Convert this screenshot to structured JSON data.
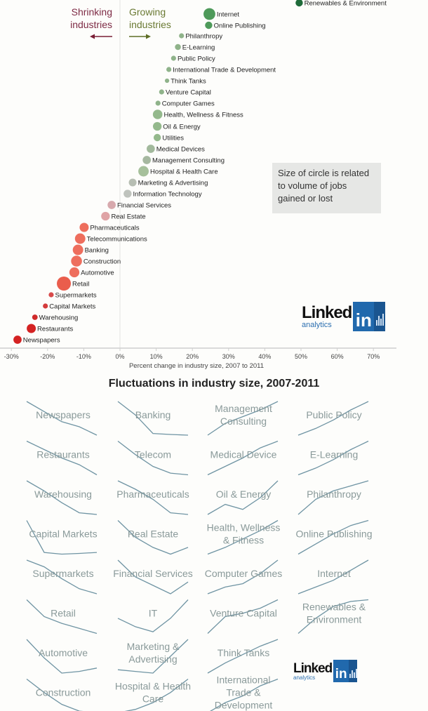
{
  "chart_data": [
    {
      "type": "scatter",
      "title": "",
      "xlabel": "Percent change in industry size, 2007 to 2011",
      "ylabel": "",
      "xlim": [
        -30,
        70
      ],
      "xticks": [
        "-30%",
        "-20%",
        "-10%",
        "0%",
        "10%",
        "20%",
        "30%",
        "40%",
        "50%",
        "60%",
        "70%"
      ],
      "xtick_values": [
        -30,
        -20,
        -10,
        0,
        10,
        20,
        30,
        40,
        50,
        60,
        70
      ],
      "grid": true,
      "annotations": {
        "shrinking": "Shrinking industries",
        "growing": "Growing industries",
        "size_note": "Size of circle is related to volume of jobs gained or lost"
      },
      "size_note_line1": "Size of circle is related",
      "size_note_line2": "to volume of jobs",
      "size_note_line3": "gained or lost",
      "series": [
        {
          "name": "Renewables & Environment",
          "value": 49.5,
          "size": 2,
          "color": "#1f6b3a"
        },
        {
          "name": "Internet",
          "value": 24.7,
          "size": 4,
          "color": "#4e9a5a"
        },
        {
          "name": "Online Publishing",
          "value": 24.5,
          "size": 2,
          "color": "#4e9a5a"
        },
        {
          "name": "Philanthropy",
          "value": 17.0,
          "size": 1,
          "color": "#8fb38a"
        },
        {
          "name": "E-Learning",
          "value": 16.0,
          "size": 1.4,
          "color": "#8fb38a"
        },
        {
          "name": "Public Policy",
          "value": 14.8,
          "size": 1,
          "color": "#8fb38a"
        },
        {
          "name": "International Trade & Development",
          "value": 13.5,
          "size": 1,
          "color": "#8fb38a"
        },
        {
          "name": "Think Tanks",
          "value": 13.0,
          "size": 0.7,
          "color": "#8fb38a"
        },
        {
          "name": "Venture Capital",
          "value": 11.5,
          "size": 1,
          "color": "#8fb38a"
        },
        {
          "name": "Computer Games",
          "value": 10.5,
          "size": 1,
          "color": "#8fb38a"
        },
        {
          "name": "Health, Wellness & Fitness",
          "value": 10.4,
          "size": 3,
          "color": "#94b98c"
        },
        {
          "name": "Oil & Energy",
          "value": 10.3,
          "size": 2.6,
          "color": "#94b98c"
        },
        {
          "name": "Utilities",
          "value": 10.3,
          "size": 2,
          "color": "#94b98c"
        },
        {
          "name": "Medical Devices",
          "value": 8.5,
          "size": 2.4,
          "color": "#a2b99c"
        },
        {
          "name": "Management Consulting",
          "value": 7.4,
          "size": 2.4,
          "color": "#a6b8a0"
        },
        {
          "name": "Hospital & Health Care",
          "value": 6.5,
          "size": 3.4,
          "color": "#a6c09b"
        },
        {
          "name": "Marketing & Advertising",
          "value": 3.5,
          "size": 2.2,
          "color": "#b7beb3"
        },
        {
          "name": "Information Technology",
          "value": 2.1,
          "size": 2.3,
          "color": "#bfc3bd"
        },
        {
          "name": "Financial Services",
          "value": -2.3,
          "size": 2.4,
          "color": "#d7a9ad"
        },
        {
          "name": "Real Estate",
          "value": -4.0,
          "size": 2.6,
          "color": "#dfa3a5"
        },
        {
          "name": "Pharmaceuticals",
          "value": -9.9,
          "size": 2.8,
          "color": "#ee6e5d"
        },
        {
          "name": "Telecommunications",
          "value": -11.0,
          "size": 3.4,
          "color": "#ee6e5d"
        },
        {
          "name": "Banking",
          "value": -11.6,
          "size": 3.4,
          "color": "#ee6e5d"
        },
        {
          "name": "Construction",
          "value": -12.0,
          "size": 3.6,
          "color": "#ee6e5d"
        },
        {
          "name": "Automotive",
          "value": -12.6,
          "size": 3.2,
          "color": "#ee6e5d"
        },
        {
          "name": "Retail",
          "value": -15.5,
          "size": 5,
          "color": "#ea5d4c"
        },
        {
          "name": "Supermarkets",
          "value": -19.0,
          "size": 1,
          "color": "#d84a4a"
        },
        {
          "name": "Capital Markets",
          "value": -20.6,
          "size": 1,
          "color": "#d43b3b"
        },
        {
          "name": "Warehousing",
          "value": -23.5,
          "size": 1.2,
          "color": "#d02a2a"
        },
        {
          "name": "Restaurants",
          "value": -24.5,
          "size": 2.8,
          "color": "#d42222"
        },
        {
          "name": "Newspapers",
          "value": -28.3,
          "size": 2.4,
          "color": "#d42222"
        }
      ]
    },
    {
      "type": "line",
      "title": "Fluctuations in industry size, 2007-2011",
      "x": [
        "2007",
        "2008",
        "2009",
        "2010",
        "2011"
      ],
      "grid": false,
      "columns": [
        [
          {
            "label": [
              "Newspapers"
            ],
            "values": [
              1.0,
              0.7,
              0.4,
              0.25,
              0.0
            ]
          },
          {
            "label": [
              "Restaurants"
            ],
            "values": [
              1.0,
              0.75,
              0.5,
              0.3,
              0.0
            ]
          },
          {
            "label": [
              "Warehousing"
            ],
            "values": [
              1.0,
              0.7,
              0.35,
              0.05,
              0.0
            ]
          },
          {
            "label": [
              "Capital Markets"
            ],
            "values": [
              1.0,
              0.05,
              0.0,
              0.02,
              0.05
            ]
          },
          {
            "label": [
              "Supermarkets"
            ],
            "values": [
              1.0,
              0.8,
              0.45,
              0.15,
              0.0
            ]
          },
          {
            "label": [
              "Retail"
            ],
            "values": [
              1.0,
              0.5,
              0.3,
              0.15,
              0.0
            ]
          },
          {
            "label": [
              "Automotive"
            ],
            "values": [
              1.0,
              0.45,
              0.0,
              0.05,
              0.15
            ]
          },
          {
            "label": [
              "Construction"
            ],
            "values": [
              1.0,
              0.6,
              0.25,
              0.05,
              0.0
            ]
          }
        ],
        [
          {
            "label": [
              "Banking"
            ],
            "values": [
              1.0,
              0.6,
              0.05,
              0.02,
              0.0
            ]
          },
          {
            "label": [
              "Telecom"
            ],
            "values": [
              1.0,
              0.6,
              0.25,
              0.05,
              0.0
            ]
          },
          {
            "label": [
              "Pharmaceuticals"
            ],
            "values": [
              1.0,
              0.75,
              0.45,
              0.05,
              0.0
            ]
          },
          {
            "label": [
              "Real Estate"
            ],
            "values": [
              1.0,
              0.5,
              0.2,
              0.0,
              0.2
            ]
          },
          {
            "label": [
              "Financial Services"
            ],
            "values": [
              1.0,
              0.5,
              0.25,
              0.0,
              0.35
            ]
          },
          {
            "label": [
              "IT"
            ],
            "values": [
              0.45,
              0.2,
              0.05,
              0.45,
              1.0
            ]
          },
          {
            "label": [
              "Marketing &",
              "Advertising"
            ],
            "values": [
              0.1,
              0.05,
              0.0,
              0.5,
              1.0
            ]
          },
          {
            "label": [
              "Hospital & Health",
              "Care"
            ],
            "values": [
              0.0,
              0.1,
              0.3,
              0.6,
              1.0
            ]
          }
        ],
        [
          {
            "label": [
              "Management",
              "Consulting"
            ],
            "values": [
              0.0,
              0.35,
              0.55,
              0.75,
              1.0
            ]
          },
          {
            "label": [
              "Medical Device"
            ],
            "values": [
              0.0,
              0.25,
              0.5,
              0.8,
              1.0
            ]
          },
          {
            "label": [
              "Oil & Energy"
            ],
            "values": [
              0.0,
              0.3,
              0.15,
              0.5,
              1.0
            ]
          },
          {
            "label": [
              "Health, Wellness",
              "& Fitness"
            ],
            "values": [
              0.0,
              0.2,
              0.45,
              0.7,
              1.0
            ]
          },
          {
            "label": [
              "Computer Games"
            ],
            "values": [
              0.0,
              0.2,
              0.3,
              0.6,
              1.0
            ]
          },
          {
            "label": [
              "Venture Capital"
            ],
            "values": [
              0.0,
              0.5,
              0.6,
              0.75,
              1.0
            ]
          },
          {
            "label": [
              "Think Tanks"
            ],
            "values": [
              0.0,
              0.3,
              0.55,
              0.8,
              1.0
            ]
          },
          {
            "label": [
              "International",
              "Trade &",
              "Development"
            ],
            "values": [
              0.0,
              0.3,
              0.5,
              0.8,
              1.0
            ]
          }
        ],
        [
          {
            "label": [
              "Public Policy"
            ],
            "values": [
              0.0,
              0.2,
              0.45,
              0.75,
              1.0
            ]
          },
          {
            "label": [
              "E-Learning"
            ],
            "values": [
              0.0,
              0.2,
              0.45,
              0.75,
              1.0
            ]
          },
          {
            "label": [
              "Philanthropy"
            ],
            "values": [
              0.0,
              0.45,
              0.7,
              0.85,
              1.0
            ]
          },
          {
            "label": [
              "Online Publishing"
            ],
            "values": [
              0.0,
              0.3,
              0.6,
              0.85,
              1.0
            ]
          },
          {
            "label": [
              "Internet"
            ],
            "values": [
              0.0,
              0.2,
              0.4,
              0.7,
              1.0
            ]
          },
          {
            "label": [
              "Renewables &",
              "Environment"
            ],
            "values": [
              0.0,
              0.45,
              0.8,
              0.95,
              1.0
            ]
          }
        ]
      ]
    }
  ],
  "branding": {
    "logo_word": "Linked",
    "logo_in": "in",
    "logo_sub": "analytics"
  }
}
